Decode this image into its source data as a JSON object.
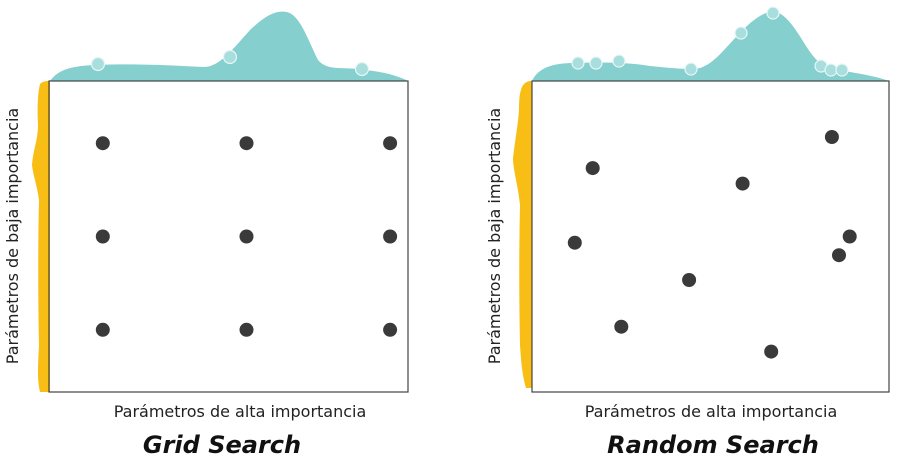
{
  "colors": {
    "top_density": "#85CFCF",
    "side_density": "#F8BE16",
    "point": "#3A3A3A",
    "frame": "#444444"
  },
  "panels": [
    {
      "title": "Grid Search",
      "xlabel": "Parámetros de alta importancia",
      "ylabel": "Parámetros de baja importancia",
      "points": [
        [
          0.15,
          0.8
        ],
        [
          0.55,
          0.8
        ],
        [
          0.95,
          0.8
        ],
        [
          0.15,
          0.5
        ],
        [
          0.55,
          0.5
        ],
        [
          0.95,
          0.5
        ],
        [
          0.15,
          0.2
        ],
        [
          0.55,
          0.2
        ],
        [
          0.95,
          0.2
        ]
      ]
    },
    {
      "title": "Random Search",
      "xlabel": "Parámetros de alta importancia",
      "ylabel": "Parámetros de baja importancia",
      "points": [
        [
          0.84,
          0.82
        ],
        [
          0.17,
          0.72
        ],
        [
          0.59,
          0.67
        ],
        [
          0.89,
          0.5
        ],
        [
          0.12,
          0.48
        ],
        [
          0.86,
          0.44
        ],
        [
          0.44,
          0.36
        ],
        [
          0.25,
          0.21
        ],
        [
          0.67,
          0.13
        ]
      ]
    }
  ]
}
